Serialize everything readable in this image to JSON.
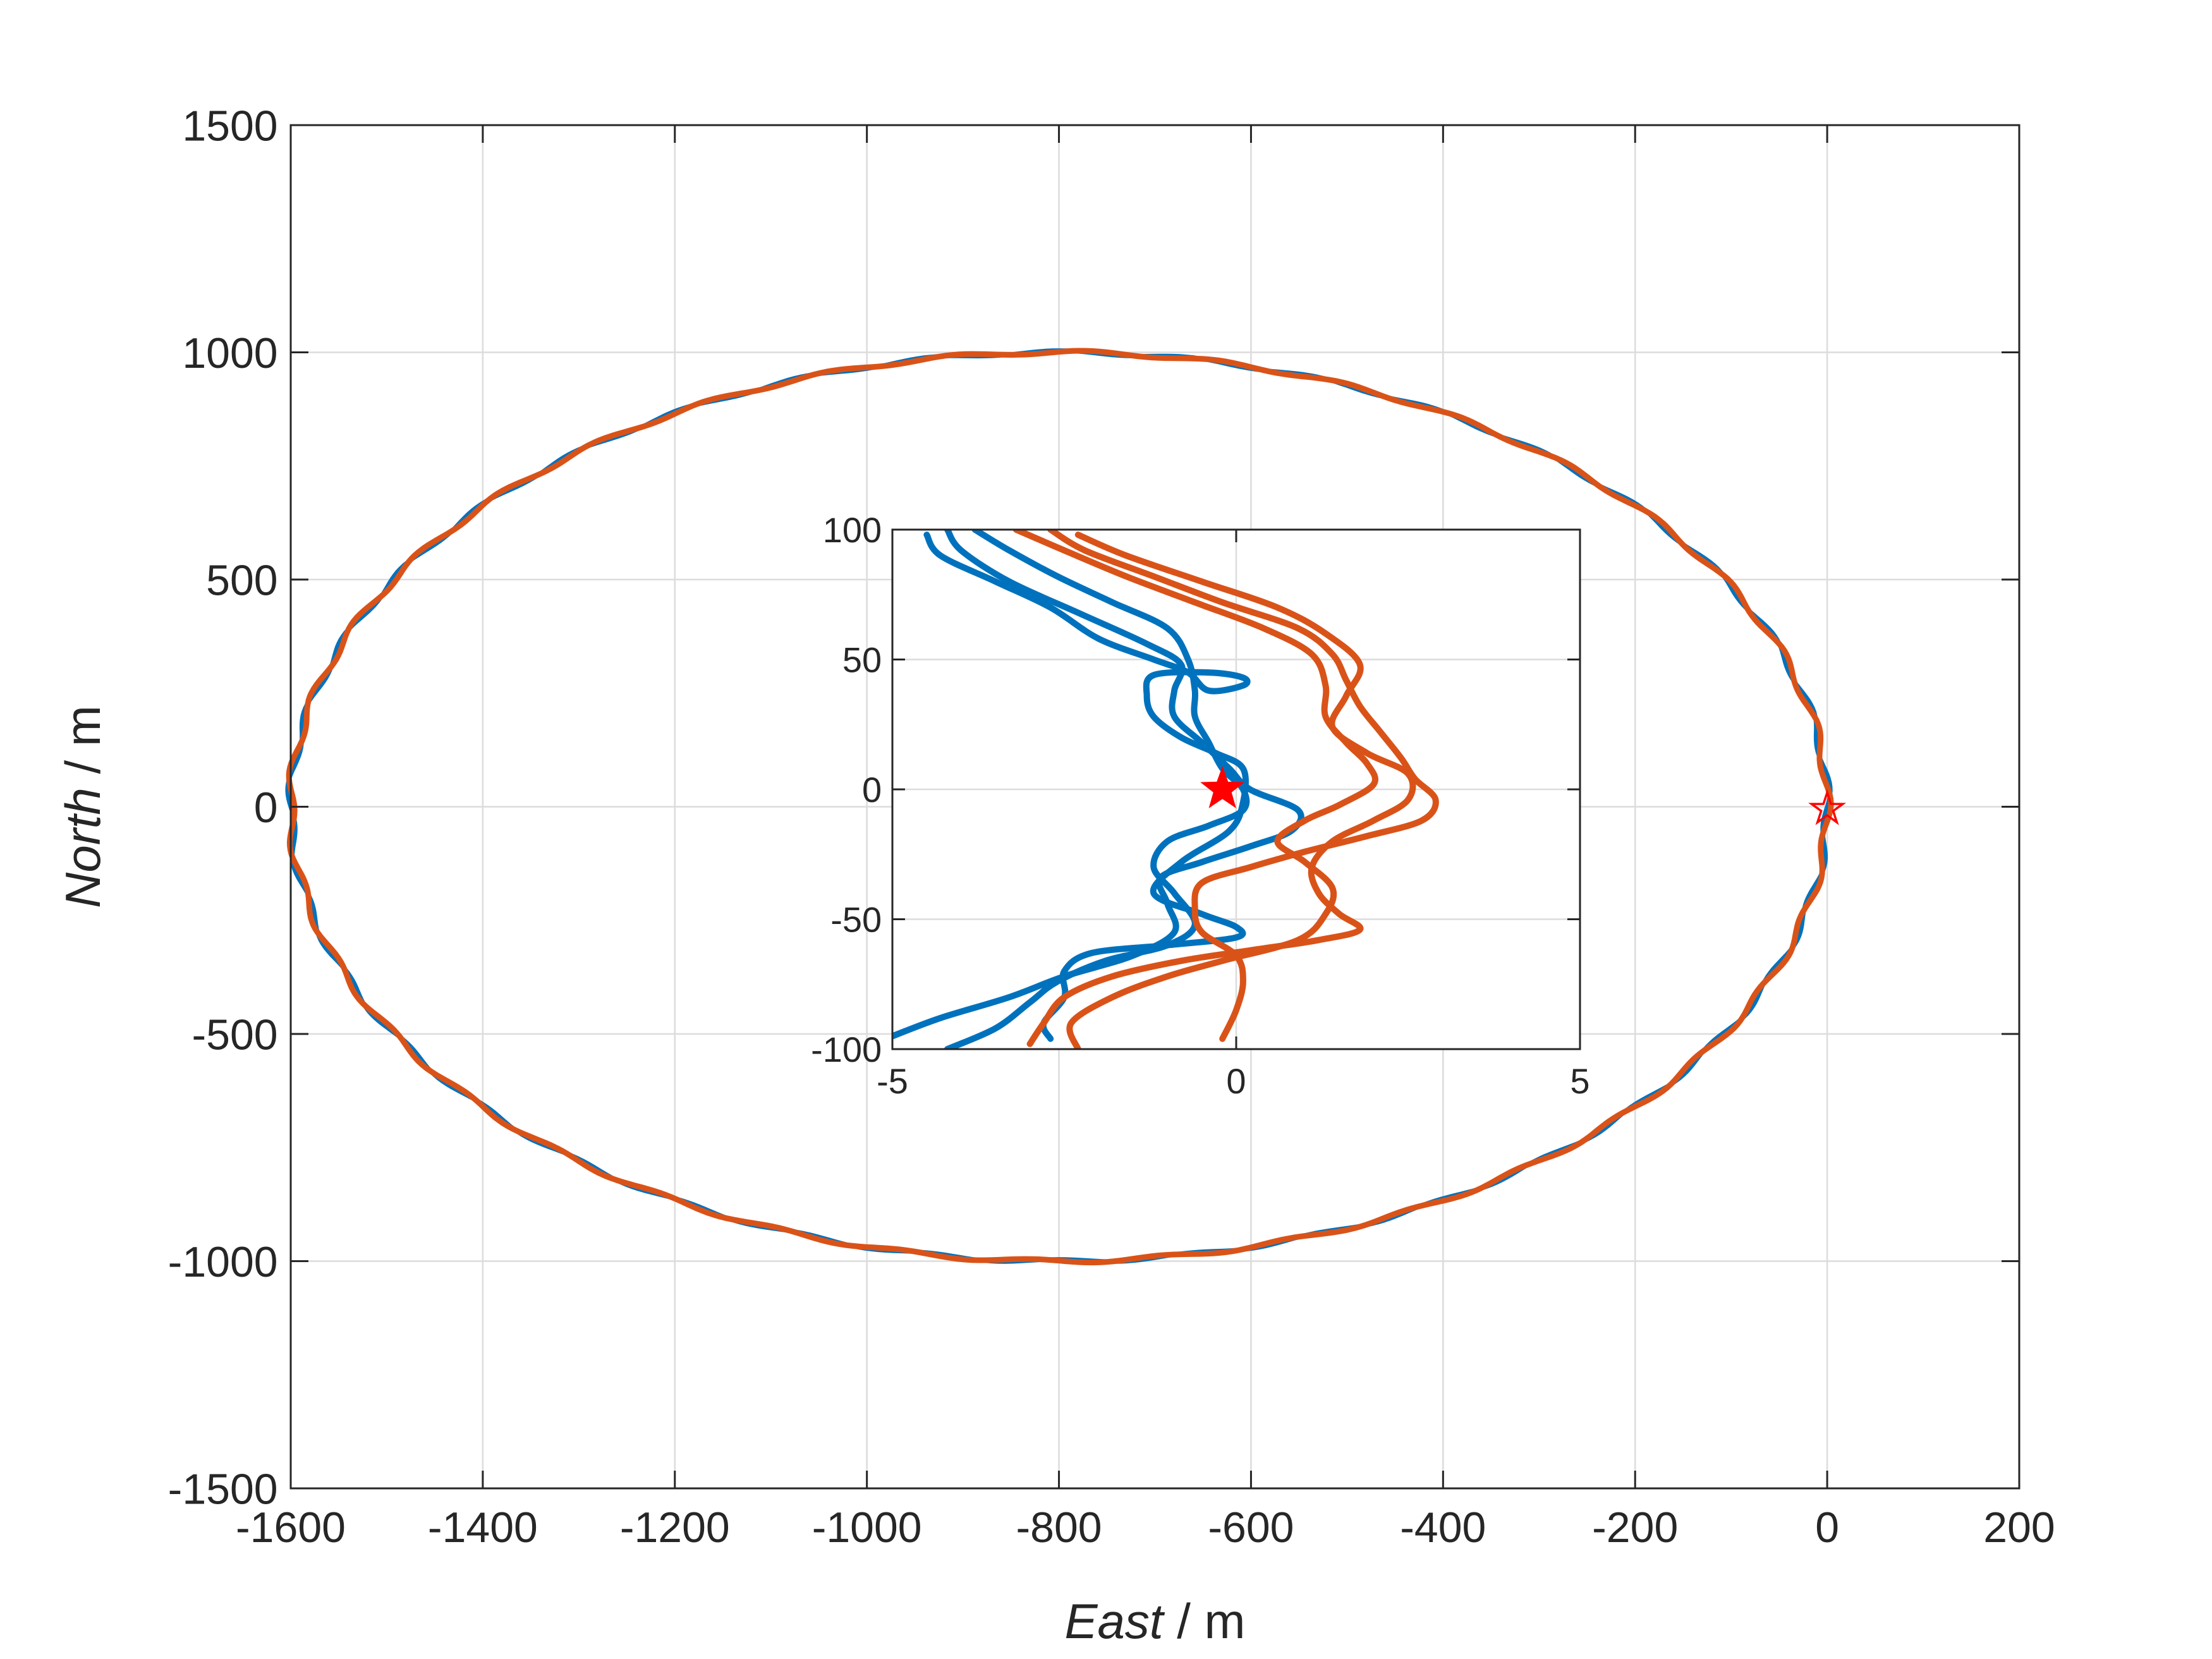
{
  "chart_data": [
    {
      "type": "line",
      "panel": "main",
      "xlabel_italic": "East",
      "xlabel_unit": " / m",
      "ylabel_italic": "North",
      "ylabel_unit": " / m",
      "xlim": [
        -1600,
        200
      ],
      "ylim": [
        -1500,
        1500
      ],
      "xticks": [
        -1600,
        -1400,
        -1200,
        -1000,
        -800,
        -600,
        -400,
        -200,
        0,
        200
      ],
      "yticks": [
        -1500,
        -1000,
        -500,
        0,
        500,
        1000,
        1500
      ],
      "grid": true,
      "trajectory": {
        "shape": "ellipse",
        "center": [
          -800,
          0
        ],
        "semi_axis_east": 800,
        "semi_axis_north": 1000
      },
      "series": [
        {
          "color": "#0072BD"
        },
        {
          "color": "#D95319"
        }
      ],
      "marker": {
        "symbol": "star",
        "x": 0,
        "y": -5,
        "color": "#FF0000"
      }
    },
    {
      "type": "line",
      "panel": "inset",
      "xlim": [
        -5,
        5
      ],
      "ylim": [
        -100,
        100
      ],
      "xticks": [
        -5,
        0,
        5
      ],
      "yticks": [
        -100,
        -50,
        0,
        50,
        100
      ],
      "grid": true,
      "series": [
        {
          "color": "#0072BD",
          "points": [
            [
              -4.2,
              100
            ],
            [
              -4.0,
              92
            ],
            [
              -3.3,
              80
            ],
            [
              -2.3,
              68
            ],
            [
              -1.3,
              56
            ],
            [
              -0.8,
              48
            ],
            [
              -0.9,
              38
            ],
            [
              -0.9,
              28
            ],
            [
              -0.5,
              18
            ],
            [
              -0.1,
              8
            ],
            [
              0.2,
              0
            ],
            [
              0.9,
              -8
            ],
            [
              0.8,
              -16
            ],
            [
              0.2,
              -22
            ],
            [
              -0.5,
              -28
            ],
            [
              -1.1,
              -34
            ],
            [
              -1.0,
              -44
            ],
            [
              -0.9,
              -55
            ],
            [
              -1.5,
              -64
            ],
            [
              -2.5,
              -72
            ],
            [
              -3.3,
              -80
            ],
            [
              -4.3,
              -88
            ],
            [
              -5.0,
              -95
            ]
          ]
        },
        {
          "color": "#0072BD",
          "points": [
            [
              -4.5,
              98
            ],
            [
              -4.3,
              90
            ],
            [
              -3.5,
              80
            ],
            [
              -2.7,
              70
            ],
            [
              -2.0,
              58
            ],
            [
              -1.2,
              50
            ],
            [
              -0.7,
              45
            ],
            [
              -0.4,
              38
            ],
            [
              0.1,
              40
            ],
            [
              0.1,
              43
            ],
            [
              -0.4,
              45
            ],
            [
              -1.2,
              44
            ],
            [
              -1.3,
              36
            ],
            [
              -1.2,
              28
            ],
            [
              -0.8,
              20
            ],
            [
              -0.3,
              14
            ],
            [
              0.1,
              8
            ],
            [
              0.1,
              -5
            ],
            [
              -0.1,
              -16
            ],
            [
              -0.8,
              -28
            ],
            [
              -1.2,
              -40
            ],
            [
              -0.5,
              -48
            ],
            [
              0.0,
              -53
            ],
            [
              0.0,
              -57
            ],
            [
              -1.0,
              -60
            ],
            [
              -2.1,
              -63
            ],
            [
              -2.5,
              -70
            ],
            [
              -2.5,
              -80
            ],
            [
              -2.8,
              -90
            ],
            [
              -2.7,
              -96
            ]
          ]
        },
        {
          "color": "#0072BD",
          "points": [
            [
              -3.8,
              100
            ],
            [
              -3.3,
              92
            ],
            [
              -2.6,
              82
            ],
            [
              -1.8,
              72
            ],
            [
              -1.0,
              62
            ],
            [
              -0.7,
              50
            ],
            [
              -0.6,
              38
            ],
            [
              -0.6,
              28
            ],
            [
              -0.4,
              18
            ],
            [
              -0.2,
              8
            ],
            [
              0.1,
              0
            ],
            [
              0.1,
              -8
            ],
            [
              -0.4,
              -14
            ],
            [
              -1.0,
              -20
            ],
            [
              -1.2,
              -30
            ],
            [
              -0.9,
              -40
            ],
            [
              -0.6,
              -52
            ],
            [
              -1.0,
              -60
            ],
            [
              -1.9,
              -66
            ],
            [
              -2.6,
              -74
            ],
            [
              -3.0,
              -82
            ],
            [
              -3.5,
              -92
            ],
            [
              -4.2,
              -100
            ]
          ]
        },
        {
          "color": "#D95319",
          "points": [
            [
              -2.7,
              100
            ],
            [
              -2.2,
              92
            ],
            [
              -1.2,
              82
            ],
            [
              -0.2,
              72
            ],
            [
              0.9,
              62
            ],
            [
              1.4,
              52
            ],
            [
              1.6,
              42
            ],
            [
              1.8,
              32
            ],
            [
              2.1,
              22
            ],
            [
              2.4,
              12
            ],
            [
              2.6,
              4
            ],
            [
              2.9,
              -4
            ],
            [
              2.7,
              -12
            ],
            [
              1.9,
              -18
            ],
            [
              1.0,
              -24
            ],
            [
              0.2,
              -30
            ],
            [
              -0.5,
              -36
            ],
            [
              -0.6,
              -46
            ],
            [
              -0.5,
              -55
            ],
            [
              0.0,
              -64
            ],
            [
              0.1,
              -74
            ],
            [
              0.0,
              -85
            ],
            [
              -0.2,
              -96
            ]
          ]
        },
        {
          "color": "#D95319",
          "points": [
            [
              -2.3,
              98
            ],
            [
              -1.6,
              90
            ],
            [
              -0.5,
              80
            ],
            [
              0.6,
              70
            ],
            [
              1.3,
              60
            ],
            [
              1.8,
              48
            ],
            [
              1.6,
              36
            ],
            [
              1.4,
              24
            ],
            [
              1.9,
              14
            ],
            [
              2.5,
              6
            ],
            [
              2.5,
              -4
            ],
            [
              2.0,
              -12
            ],
            [
              1.4,
              -20
            ],
            [
              1.1,
              -30
            ],
            [
              1.2,
              -40
            ],
            [
              1.5,
              -48
            ],
            [
              1.8,
              -54
            ],
            [
              1.2,
              -58
            ],
            [
              0.2,
              -62
            ],
            [
              -0.8,
              -66
            ],
            [
              -1.8,
              -72
            ],
            [
              -2.5,
              -80
            ],
            [
              -2.8,
              -90
            ],
            [
              -3.0,
              -98
            ]
          ]
        },
        {
          "color": "#D95319",
          "points": [
            [
              -3.2,
              100
            ],
            [
              -2.5,
              92
            ],
            [
              -1.6,
              82
            ],
            [
              -0.6,
              72
            ],
            [
              0.4,
              62
            ],
            [
              1.1,
              52
            ],
            [
              1.3,
              40
            ],
            [
              1.3,
              28
            ],
            [
              1.6,
              18
            ],
            [
              1.9,
              10
            ],
            [
              2.0,
              2
            ],
            [
              1.5,
              -6
            ],
            [
              1.0,
              -12
            ],
            [
              0.6,
              -20
            ],
            [
              1.0,
              -28
            ],
            [
              1.4,
              -38
            ],
            [
              1.3,
              -48
            ],
            [
              0.9,
              -58
            ],
            [
              -0.2,
              -66
            ],
            [
              -1.0,
              -72
            ],
            [
              -1.8,
              -80
            ],
            [
              -2.4,
              -90
            ],
            [
              -2.3,
              -100
            ]
          ]
        }
      ],
      "marker": {
        "symbol": "star",
        "x": -0.2,
        "y": 0,
        "color": "#FF0000"
      }
    }
  ]
}
